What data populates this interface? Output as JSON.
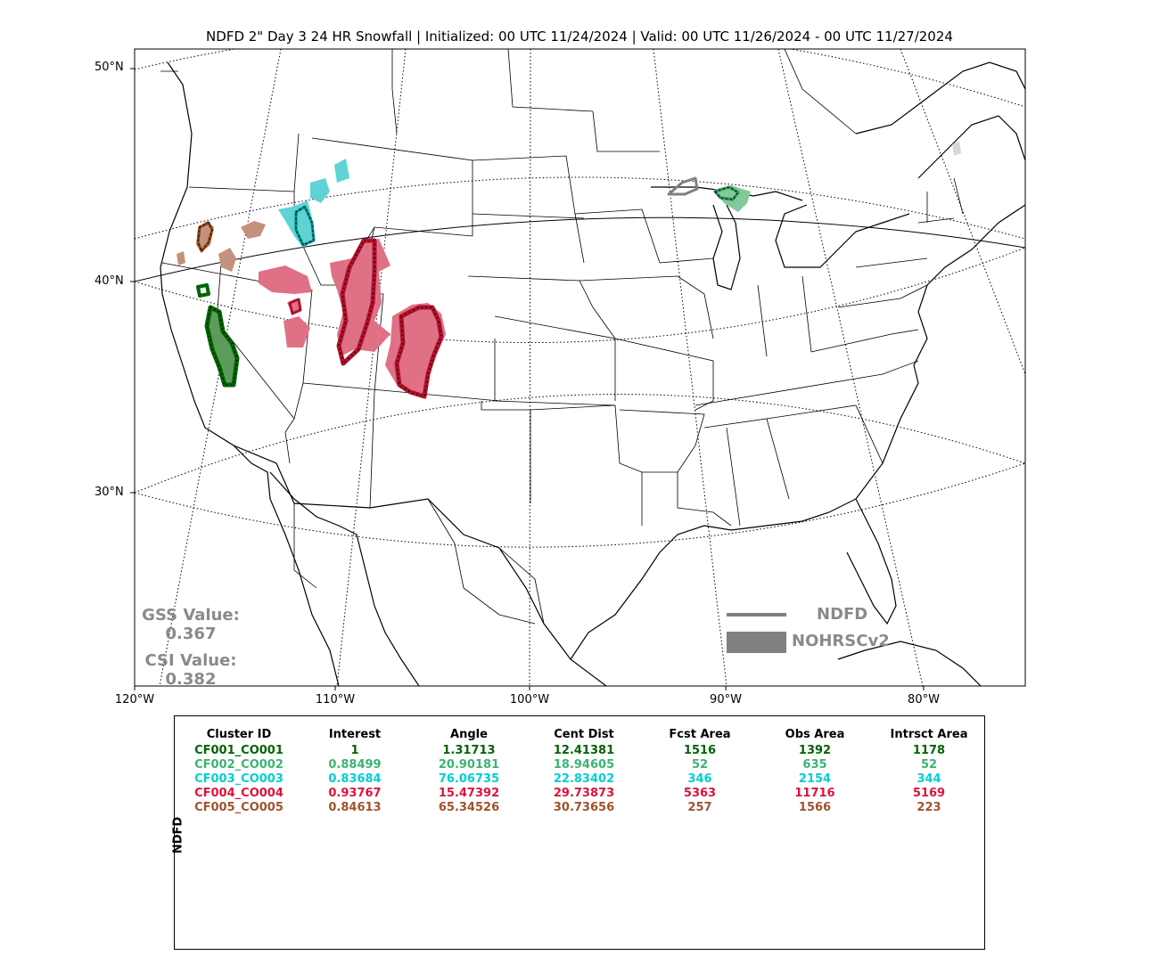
{
  "title": "NDFD 2\" Day 3 24 HR Snowfall | Initialized: 00 UTC 11/24/2024 | Valid: 00 UTC 11/26/2024 - 00 UTC 11/27/2024",
  "lat_labels": [
    "50°N",
    "40°N",
    "30°N"
  ],
  "lon_labels": [
    "120°W",
    "110°W",
    "100°W",
    "90°W",
    "80°W"
  ],
  "gss": {
    "label": "GSS Value:",
    "value": "0.367"
  },
  "csi": {
    "label": "CSI Value:",
    "value": "0.382"
  },
  "legend": {
    "forecast_label": "NDFD",
    "observed_label": "NOHRSCv2",
    "color": "#808080"
  },
  "table": {
    "row_label": "NDFD",
    "headers": [
      "Cluster ID",
      "Interest",
      "Angle",
      "Cent Dist",
      "Fcst Area",
      "Obs Area",
      "Intrsct Area"
    ],
    "rows": [
      {
        "color": "#006400",
        "cells": [
          "CF001_CO001",
          "1",
          "1.31713",
          "12.41381",
          "1516",
          "1392",
          "1178"
        ]
      },
      {
        "color": "#3cb371",
        "cells": [
          "CF002_CO002",
          "0.88499",
          "20.90181",
          "18.94605",
          "52",
          "635",
          "52"
        ]
      },
      {
        "color": "#00ced1",
        "cells": [
          "CF003_CO003",
          "0.83684",
          "76.06735",
          "22.83402",
          "346",
          "2154",
          "344"
        ]
      },
      {
        "color": "#dc143c",
        "cells": [
          "CF004_CO004",
          "0.93767",
          "15.47392",
          "29.73873",
          "5363",
          "11716",
          "5169"
        ]
      },
      {
        "color": "#a0522d",
        "cells": [
          "CF005_CO005",
          "0.84613",
          "65.34526",
          "30.73656",
          "257",
          "1566",
          "223"
        ]
      }
    ]
  },
  "clusters": [
    {
      "id": "CF001_CO001",
      "color": "#006400",
      "fill": "#5d9b5d"
    },
    {
      "id": "CF002_CO002",
      "color": "#2e8b57",
      "fill": "#7fc99a"
    },
    {
      "id": "CF003_CO003",
      "color": "#008b8b",
      "fill": "#5fd3d3"
    },
    {
      "id": "CF004_CO004",
      "color": "#dc143c",
      "fill": "#e07085"
    },
    {
      "id": "CF005_CO005",
      "color": "#8b4513",
      "fill": "#c4917c"
    }
  ]
}
